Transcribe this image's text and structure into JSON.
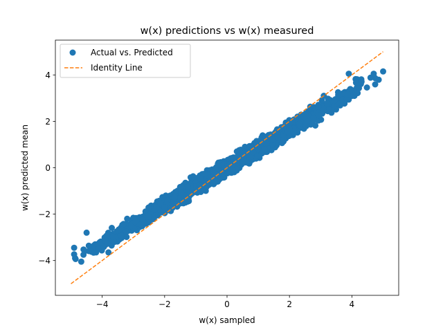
{
  "chart_data": {
    "type": "scatter",
    "title": "w(x) predictions vs w(x) measured",
    "xlabel": "w(x) sampled",
    "ylabel": "w(x) predicted mean",
    "xlim": [
      -5.5,
      5.5
    ],
    "ylim": [
      -5.5,
      5.5
    ],
    "xticks": [
      -4,
      -2,
      0,
      2,
      4
    ],
    "yticks": [
      -4,
      -2,
      0,
      2,
      4
    ],
    "xtick_labels": [
      "−4",
      "−2",
      "0",
      "2",
      "4"
    ],
    "ytick_labels": [
      "−4",
      "−2",
      "0",
      "2",
      "4"
    ],
    "grid": false,
    "legend_position": "upper-left",
    "series": [
      {
        "name": "Actual vs. Predicted",
        "kind": "scatter",
        "color": "#1f77b4",
        "trend": {
          "slope": 0.82,
          "intercept": 0.02
        },
        "x_range": [
          -4.9,
          5.0
        ],
        "spread": 0.3,
        "sample_points": [
          {
            "x": -4.9,
            "y": -3.45
          },
          {
            "x": -4.6,
            "y": -3.75
          },
          {
            "x": -4.5,
            "y": -2.8
          },
          {
            "x": -3.8,
            "y": -3.65
          },
          {
            "x": -3.2,
            "y": -2.2
          },
          {
            "x": -2.0,
            "y": -1.7
          },
          {
            "x": 0.0,
            "y": 0.0
          },
          {
            "x": 2.0,
            "y": 1.7
          },
          {
            "x": 3.1,
            "y": 3.1
          },
          {
            "x": 3.9,
            "y": 4.05
          },
          {
            "x": 4.7,
            "y": 4.05
          },
          {
            "x": 5.0,
            "y": 4.15
          }
        ]
      },
      {
        "name": "Identity Line",
        "kind": "line",
        "style": "dashed",
        "color": "#ff7f0e",
        "x": [
          -5,
          5
        ],
        "y": [
          -5,
          5
        ]
      }
    ]
  }
}
